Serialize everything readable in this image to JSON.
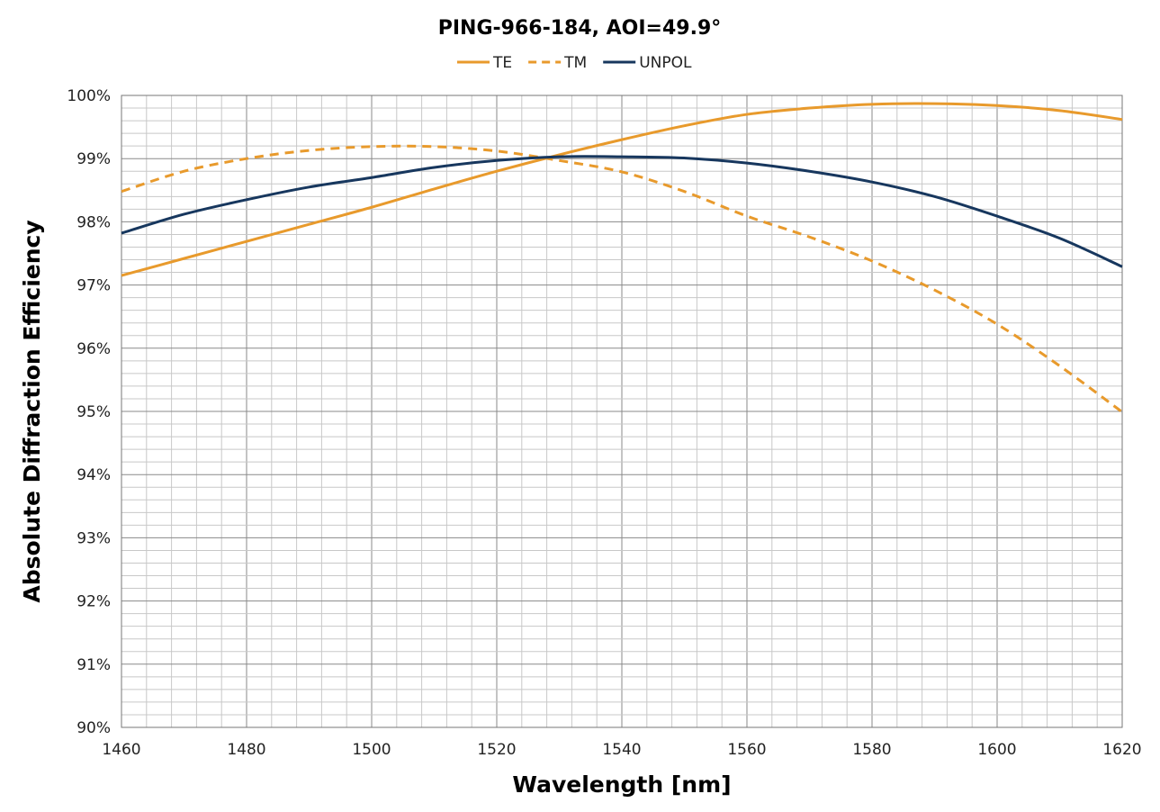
{
  "chart_data": {
    "type": "line",
    "title": "PING-966-184, AOI=49.9°",
    "xlabel": "Wavelength [nm]",
    "ylabel": "Absolute Diffraction Efficiency",
    "xlim": [
      1460,
      1620
    ],
    "ylim": [
      90,
      100
    ],
    "x_ticks": [
      1460,
      1480,
      1500,
      1520,
      1540,
      1560,
      1580,
      1600,
      1620
    ],
    "y_ticks": [
      "90%",
      "91%",
      "92%",
      "93%",
      "94%",
      "95%",
      "96%",
      "97%",
      "98%",
      "99%",
      "100%"
    ],
    "grid": "major and minor",
    "legend_position": "top",
    "x": [
      1460,
      1470,
      1480,
      1490,
      1500,
      1510,
      1520,
      1530,
      1540,
      1550,
      1560,
      1570,
      1580,
      1590,
      1600,
      1610,
      1620
    ],
    "series": [
      {
        "name": "TE",
        "color": "#E89A2C",
        "style": "solid",
        "values": [
          97.15,
          97.42,
          97.69,
          97.96,
          98.23,
          98.52,
          98.8,
          99.06,
          99.3,
          99.52,
          99.7,
          99.8,
          99.86,
          99.87,
          99.84,
          99.76,
          99.62
        ]
      },
      {
        "name": "TM",
        "color": "#E89A2C",
        "style": "dashed",
        "values": [
          98.48,
          98.8,
          99.0,
          99.13,
          99.19,
          99.19,
          99.12,
          98.97,
          98.79,
          98.48,
          98.09,
          97.76,
          97.38,
          96.92,
          96.38,
          95.72,
          94.99
        ]
      },
      {
        "name": "UNPOL",
        "color": "#17375E",
        "style": "solid",
        "values": [
          97.82,
          98.12,
          98.35,
          98.55,
          98.7,
          98.86,
          98.97,
          99.03,
          99.03,
          99.01,
          98.93,
          98.8,
          98.63,
          98.4,
          98.09,
          97.74,
          97.29
        ]
      }
    ]
  }
}
